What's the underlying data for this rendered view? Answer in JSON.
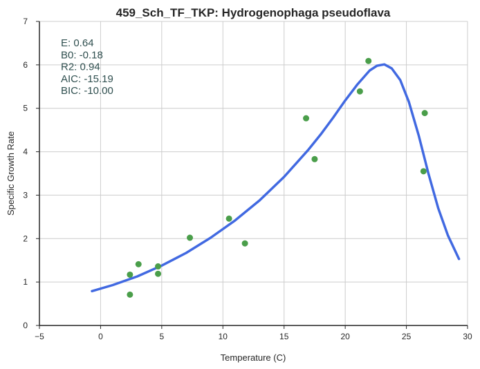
{
  "chart_data": {
    "type": "scatter",
    "title": "459_Sch_TF_TKP: Hydrogenophaga pseudoflava",
    "xlabel": "Temperature (C)",
    "ylabel": "Specific Growth Rate",
    "xlim": [
      -5,
      30
    ],
    "ylim": [
      0,
      7
    ],
    "xticks": [
      -5,
      0,
      5,
      10,
      15,
      20,
      25,
      30
    ],
    "yticks": [
      0,
      1,
      2,
      3,
      4,
      5,
      6,
      7
    ],
    "xtick_labels": [
      "−5",
      "0",
      "5",
      "10",
      "15",
      "20",
      "25",
      "30"
    ],
    "ytick_labels": [
      "0",
      "1",
      "2",
      "3",
      "4",
      "5",
      "6",
      "7"
    ],
    "grid": true,
    "point_color": "#4a9e4a",
    "line_color": "#4169e1",
    "points": [
      {
        "x": 2.4,
        "y": 1.17
      },
      {
        "x": 2.4,
        "y": 0.71
      },
      {
        "x": 3.1,
        "y": 1.41
      },
      {
        "x": 4.7,
        "y": 1.36
      },
      {
        "x": 4.7,
        "y": 1.19
      },
      {
        "x": 7.3,
        "y": 2.02
      },
      {
        "x": 10.5,
        "y": 2.46
      },
      {
        "x": 11.8,
        "y": 1.89
      },
      {
        "x": 16.8,
        "y": 4.77
      },
      {
        "x": 17.5,
        "y": 3.83
      },
      {
        "x": 21.2,
        "y": 5.39
      },
      {
        "x": 21.9,
        "y": 6.09
      },
      {
        "x": 26.4,
        "y": 3.55
      },
      {
        "x": 26.5,
        "y": 4.89
      }
    ],
    "fit_curve": [
      {
        "x": -0.7,
        "y": 0.79
      },
      {
        "x": 1.0,
        "y": 0.93
      },
      {
        "x": 3.0,
        "y": 1.13
      },
      {
        "x": 5.0,
        "y": 1.38
      },
      {
        "x": 7.0,
        "y": 1.67
      },
      {
        "x": 9.0,
        "y": 2.02
      },
      {
        "x": 11.0,
        "y": 2.42
      },
      {
        "x": 13.0,
        "y": 2.88
      },
      {
        "x": 15.0,
        "y": 3.42
      },
      {
        "x": 17.0,
        "y": 4.05
      },
      {
        "x": 18.0,
        "y": 4.4
      },
      {
        "x": 19.0,
        "y": 4.78
      },
      {
        "x": 20.0,
        "y": 5.18
      },
      {
        "x": 21.0,
        "y": 5.55
      },
      {
        "x": 22.0,
        "y": 5.87
      },
      {
        "x": 22.6,
        "y": 5.98
      },
      {
        "x": 23.2,
        "y": 6.01
      },
      {
        "x": 23.8,
        "y": 5.92
      },
      {
        "x": 24.5,
        "y": 5.65
      },
      {
        "x": 25.2,
        "y": 5.15
      },
      {
        "x": 26.0,
        "y": 4.38
      },
      {
        "x": 26.8,
        "y": 3.5
      },
      {
        "x": 27.6,
        "y": 2.7
      },
      {
        "x": 28.4,
        "y": 2.07
      },
      {
        "x": 29.3,
        "y": 1.53
      }
    ],
    "stats": [
      {
        "label": "E:",
        "value": "0.64"
      },
      {
        "label": "B0:",
        "value": "-0.18"
      },
      {
        "label": "R2:",
        "value": "0.94"
      },
      {
        "label": "AIC:",
        "value": "-15.19"
      },
      {
        "label": "BIC:",
        "value": "-10.00"
      }
    ]
  }
}
